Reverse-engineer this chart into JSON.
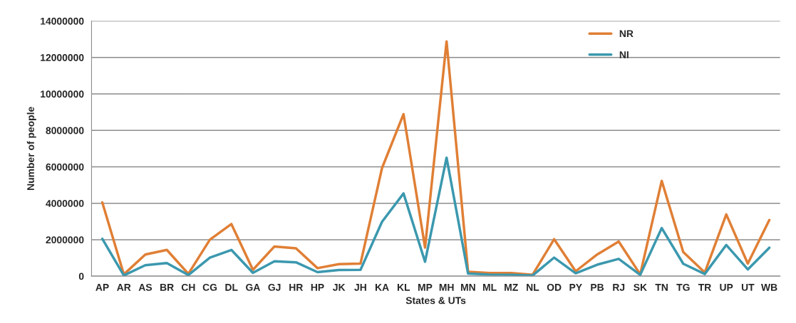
{
  "chart_data": {
    "type": "line",
    "xlabel": "States & UTs",
    "ylabel": "Number of people",
    "categories": [
      "AP",
      "AR",
      "AS",
      "BR",
      "CH",
      "CG",
      "DL",
      "GA",
      "GJ",
      "HR",
      "HP",
      "JK",
      "JH",
      "KA",
      "KL",
      "MP",
      "MH",
      "MN",
      "ML",
      "MZ",
      "NL",
      "OD",
      "PY",
      "PB",
      "RJ",
      "SK",
      "TN",
      "TG",
      "TR",
      "UP",
      "UT",
      "WB"
    ],
    "series": [
      {
        "name": "NR",
        "color": "#e07f35",
        "values": [
          4050000,
          100000,
          1190000,
          1440000,
          130000,
          2000000,
          2860000,
          350000,
          1630000,
          1530000,
          440000,
          660000,
          690000,
          5930000,
          8890000,
          1570000,
          12880000,
          240000,
          170000,
          170000,
          80000,
          2030000,
          270000,
          1190000,
          1900000,
          100000,
          5230000,
          1320000,
          200000,
          3390000,
          690000,
          3080000
        ]
      },
      {
        "name": "NI",
        "color": "#3b98ae",
        "values": [
          2050000,
          40000,
          600000,
          720000,
          60000,
          1020000,
          1440000,
          180000,
          820000,
          760000,
          220000,
          340000,
          350000,
          2980000,
          4540000,
          790000,
          6500000,
          140000,
          90000,
          80000,
          40000,
          1020000,
          160000,
          630000,
          950000,
          70000,
          2640000,
          680000,
          120000,
          1710000,
          370000,
          1560000
        ]
      }
    ],
    "ylim": [
      0,
      14000000
    ],
    "yticks": [
      0,
      2000000,
      4000000,
      6000000,
      8000000,
      10000000,
      12000000,
      14000000
    ],
    "grid": "y",
    "legend": "top right",
    "line_style": "solid",
    "marker": "none"
  }
}
